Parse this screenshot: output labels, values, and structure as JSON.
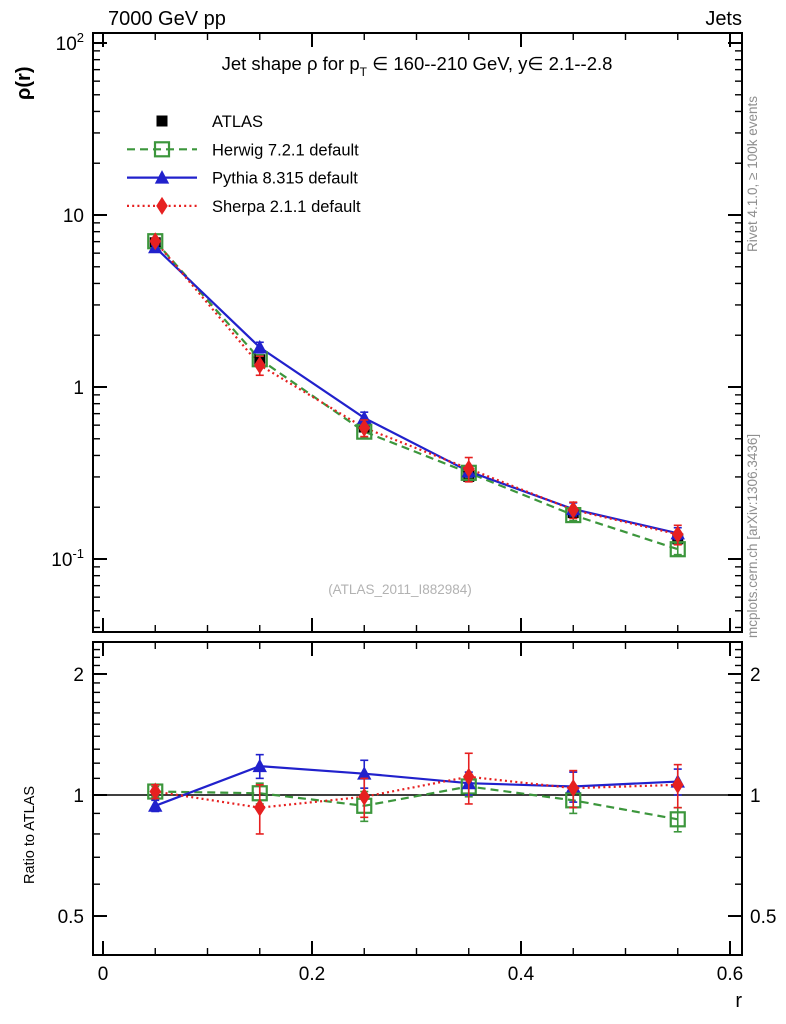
{
  "header": {
    "left": "7000 GeV pp",
    "right": "Jets"
  },
  "panel_title": {
    "prefix": "Jet shape ρ for p",
    "sub": "T",
    "suffix": " ∈ 160--210 GeV, y∈ 2.1--2.8"
  },
  "watermark": "(ATLAS_2011_I882984)",
  "side_notes": {
    "top": "Rivet 4.1.0, ≥ 100k events",
    "bottom": "mcplots.cern.ch [arXiv:1306.3436]"
  },
  "axes": {
    "x": {
      "label": "r",
      "min": -0.01,
      "max": 0.6115,
      "major": [
        {
          "label": "0",
          "value": 0
        },
        {
          "label": "0.2",
          "value": 0.2
        },
        {
          "label": "0.4",
          "value": 0.4
        },
        {
          "label": "0.6",
          "value": 0.6
        }
      ],
      "minor_step": 0.05
    },
    "y_main": {
      "label": "ρ(r)",
      "scale": "log",
      "min": 0.0376,
      "max": 114,
      "ticks": [
        {
          "base": "10",
          "exp": "2",
          "value": 100
        },
        {
          "base": "10",
          "exp": "",
          "value": 10
        },
        {
          "base": "1",
          "exp": "",
          "value": 1
        },
        {
          "base": "10",
          "exp": "-1",
          "value": 0.1
        }
      ]
    },
    "y_ratio": {
      "label": "Ratio to ATLAS",
      "scale": "log",
      "min": 0.4,
      "max": 2.4,
      "ticks": [
        {
          "label": "2",
          "value": 2
        },
        {
          "label": "1",
          "value": 1
        },
        {
          "label": "0.5",
          "value": 0.5
        }
      ],
      "minor": [
        0.4,
        0.6,
        0.7,
        0.8,
        0.9,
        1.1,
        1.2,
        1.3,
        1.4,
        1.5,
        1.6,
        1.7,
        1.8,
        1.9,
        2.1,
        2.2,
        2.3,
        2.4
      ]
    }
  },
  "chart_data": {
    "type": "line",
    "title": "Jet shape ρ for pT ∈ 160--210 GeV, y∈ 2.1--2.8",
    "xlabel": "r",
    "ylabel": "ρ(r)",
    "ratio_ylabel": "Ratio to ATLAS",
    "x": [
      0.05,
      0.15,
      0.25,
      0.35,
      0.45,
      0.55
    ],
    "y_main_range": [
      0.0376,
      114
    ],
    "y_ratio_range": [
      0.4,
      2.4
    ],
    "ratio_reference": 1,
    "legend_position": "top-left",
    "grid": false,
    "series": [
      {
        "name": "ATLAS",
        "color": "#000000",
        "marker": "filled-square",
        "line": "none",
        "rho": [
          6.9,
          1.44,
          0.585,
          0.302,
          0.186,
          0.131
        ],
        "rho_err": [
          0.25,
          0.07,
          0.028,
          0.015,
          0.011,
          0.009
        ],
        "ratio": [
          1,
          1,
          1,
          1,
          1,
          1
        ],
        "ratio_err": [
          0,
          0,
          0,
          0,
          0,
          0
        ]
      },
      {
        "name": "Herwig 7.2.1 default",
        "color": "#3c963c",
        "marker": "open-square",
        "line": "dashed",
        "rho": [
          7.04,
          1.45,
          0.55,
          0.317,
          0.18,
          0.114
        ],
        "rho_err": [
          0.21,
          0.09,
          0.044,
          0.019,
          0.013,
          0.008
        ],
        "ratio": [
          1.02,
          1.01,
          0.94,
          1.05,
          0.97,
          0.87
        ],
        "ratio_err": [
          0.03,
          0.06,
          0.08,
          0.06,
          0.07,
          0.06
        ]
      },
      {
        "name": "Pythia 8.315 default",
        "color": "#2121cc",
        "marker": "filled-triangle",
        "line": "solid",
        "rho": [
          6.49,
          1.7,
          0.661,
          0.323,
          0.195,
          0.141
        ],
        "rho_err": [
          0.19,
          0.12,
          0.053,
          0.023,
          0.017,
          0.011
        ],
        "ratio": [
          0.94,
          1.18,
          1.13,
          1.07,
          1.05,
          1.08
        ],
        "ratio_err": [
          0.03,
          0.08,
          0.09,
          0.07,
          0.09,
          0.08
        ]
      },
      {
        "name": "Sherpa 2.1.1 default",
        "color": "#e62020",
        "marker": "filled-diamond",
        "line": "dotted",
        "rho": [
          7.04,
          1.34,
          0.579,
          0.335,
          0.193,
          0.139
        ],
        "rho_err": [
          0.28,
          0.17,
          0.064,
          0.054,
          0.021,
          0.018
        ],
        "ratio": [
          1.02,
          0.93,
          0.99,
          1.11,
          1.04,
          1.06
        ],
        "ratio_err": [
          0.04,
          0.13,
          0.11,
          0.16,
          0.11,
          0.13
        ]
      }
    ]
  }
}
